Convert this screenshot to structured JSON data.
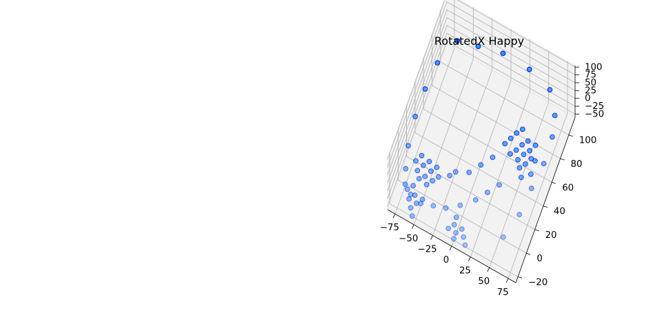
{
  "chart_data": {
    "type": "scatter",
    "title": "RotatedX Happy",
    "xlabel": "",
    "ylabel": "",
    "zlabel": "",
    "grid": true,
    "marker_color": "#1f9bff",
    "marker_edge_color": "#0000ff",
    "pane_color": "#f2f2f2",
    "x_ticks": [
      "−75",
      "−50",
      "−25",
      "0",
      "25",
      "50",
      "75"
    ],
    "y_ticks": [
      "−20",
      "0",
      "20",
      "40",
      "60",
      "80",
      "100"
    ],
    "z_ticks": [
      "−50",
      "−25",
      "0",
      "25",
      "50",
      "75",
      "100"
    ],
    "xlim": [
      -85,
      85
    ],
    "ylim": [
      -25,
      115
    ],
    "zlim": [
      -60,
      105
    ],
    "points": [
      {
        "x": -60,
        "y": 95,
        "z": 60
      },
      {
        "x": -35,
        "y": 100,
        "z": 58
      },
      {
        "x": -5,
        "y": 105,
        "z": 58
      },
      {
        "x": 30,
        "y": 105,
        "z": 55
      },
      {
        "x": 60,
        "y": 100,
        "z": 50
      },
      {
        "x": 75,
        "y": 85,
        "z": 45
      },
      {
        "x": 80,
        "y": 70,
        "z": 40
      },
      {
        "x": 80,
        "y": 50,
        "z": 30
      },
      {
        "x": 75,
        "y": 30,
        "z": 20
      },
      {
        "x": 70,
        "y": 10,
        "z": 5
      },
      {
        "x": 60,
        "y": -10,
        "z": -5
      },
      {
        "x": -75,
        "y": 75,
        "z": 45
      },
      {
        "x": -80,
        "y": 55,
        "z": 30
      },
      {
        "x": -82,
        "y": 35,
        "z": 15
      },
      {
        "x": -80,
        "y": 15,
        "z": 0
      },
      {
        "x": -75,
        "y": 0,
        "z": -10
      },
      {
        "x": -70,
        "y": -10,
        "z": -15
      },
      {
        "x": -60,
        "y": -15,
        "z": -15
      },
      {
        "x": -45,
        "y": -18,
        "z": -12
      },
      {
        "x": -30,
        "y": -15,
        "z": -10
      },
      {
        "x": -15,
        "y": -12,
        "z": -8
      },
      {
        "x": 0,
        "y": -5,
        "z": -5
      },
      {
        "x": 15,
        "y": 5,
        "z": -5
      },
      {
        "x": 25,
        "y": 15,
        "z": -5
      },
      {
        "x": 35,
        "y": 25,
        "z": -5
      },
      {
        "x": -25,
        "y": 15,
        "z": -20
      },
      {
        "x": -20,
        "y": 20,
        "z": -20
      },
      {
        "x": -5,
        "y": 25,
        "z": -20
      },
      {
        "x": 5,
        "y": 35,
        "z": -20
      },
      {
        "x": 15,
        "y": 45,
        "z": -20
      },
      {
        "x": -65,
        "y": 20,
        "z": -30
      },
      {
        "x": -60,
        "y": 15,
        "z": -35
      },
      {
        "x": -55,
        "y": 20,
        "z": -35
      },
      {
        "x": -50,
        "y": 15,
        "z": -40
      },
      {
        "x": -45,
        "y": 20,
        "z": -40
      },
      {
        "x": -55,
        "y": 10,
        "z": -45
      },
      {
        "x": -50,
        "y": 5,
        "z": -45
      },
      {
        "x": -60,
        "y": 5,
        "z": -40
      },
      {
        "x": -65,
        "y": 10,
        "z": -40
      },
      {
        "x": -45,
        "y": 10,
        "z": -45
      },
      {
        "x": -40,
        "y": 15,
        "z": -45
      },
      {
        "x": -70,
        "y": 15,
        "z": -35
      },
      {
        "x": 30,
        "y": 75,
        "z": -35
      },
      {
        "x": 35,
        "y": 80,
        "z": -35
      },
      {
        "x": 40,
        "y": 70,
        "z": -40
      },
      {
        "x": 45,
        "y": 75,
        "z": -40
      },
      {
        "x": 50,
        "y": 70,
        "z": -45
      },
      {
        "x": 55,
        "y": 75,
        "z": -40
      },
      {
        "x": 45,
        "y": 65,
        "z": -45
      },
      {
        "x": 35,
        "y": 65,
        "z": -45
      },
      {
        "x": 30,
        "y": 60,
        "z": -45
      },
      {
        "x": 40,
        "y": 60,
        "z": -50
      },
      {
        "x": 50,
        "y": 60,
        "z": -50
      },
      {
        "x": 55,
        "y": 65,
        "z": -45
      },
      {
        "x": 25,
        "y": 70,
        "z": -40
      },
      {
        "x": 60,
        "y": 65,
        "z": -45
      },
      {
        "x": 60,
        "y": 55,
        "z": -50
      },
      {
        "x": 20,
        "y": 65,
        "z": -45
      },
      {
        "x": 45,
        "y": 55,
        "z": -50
      },
      {
        "x": 50,
        "y": 50,
        "z": -55
      },
      {
        "x": -10,
        "y": -15,
        "z": -55
      },
      {
        "x": -5,
        "y": -10,
        "z": -55
      },
      {
        "x": 0,
        "y": -15,
        "z": -55
      },
      {
        "x": 5,
        "y": -10,
        "z": -55
      },
      {
        "x": 10,
        "y": -15,
        "z": -55
      },
      {
        "x": 0,
        "y": -20,
        "z": -55
      },
      {
        "x": -5,
        "y": -5,
        "z": -50
      },
      {
        "x": 15,
        "y": -20,
        "z": -55
      },
      {
        "x": -70,
        "y": -5,
        "z": -50
      },
      {
        "x": -65,
        "y": -10,
        "z": -55
      },
      {
        "x": -60,
        "y": -5,
        "z": -55
      },
      {
        "x": -55,
        "y": -10,
        "z": -55
      },
      {
        "x": -50,
        "y": -5,
        "z": -55
      },
      {
        "x": -60,
        "y": -15,
        "z": -58
      },
      {
        "x": -55,
        "y": -20,
        "z": -58
      },
      {
        "x": -65,
        "y": 0,
        "z": -50
      }
    ]
  }
}
